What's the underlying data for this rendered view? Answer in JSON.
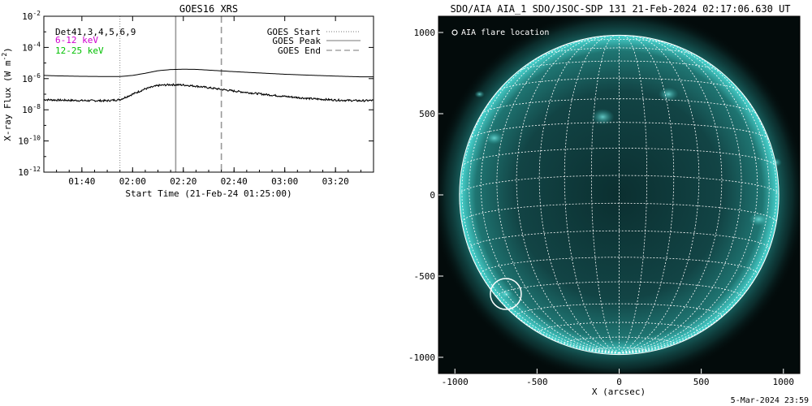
{
  "chart_data": [
    {
      "type": "line",
      "title": "GOES16 XRS",
      "xlabel": "Start Time (21-Feb-24 01:25:00)",
      "ylabel": "X-ray Flux (W m",
      "ylabel_sup": "-2",
      "ylabel_close": ")",
      "y_scale": "log",
      "ylim": [
        1e-12,
        0.01
      ],
      "y_ticks": [
        {
          "base": "10",
          "exp": "-12",
          "value": 1e-12
        },
        {
          "base": "10",
          "exp": "-10",
          "value": 1e-10
        },
        {
          "base": "10",
          "exp": "-8",
          "value": 1e-08
        },
        {
          "base": "10",
          "exp": "-6",
          "value": 1e-06
        },
        {
          "base": "10",
          "exp": "-4",
          "value": 0.0001
        },
        {
          "base": "10",
          "exp": "-2",
          "value": 0.01
        }
      ],
      "xlim": [
        "01:25",
        "03:35"
      ],
      "x_ticks": [
        {
          "label": "01:40",
          "value": "01:40"
        },
        {
          "label": "02:00",
          "value": "02:00"
        },
        {
          "label": "02:20",
          "value": "02:20"
        },
        {
          "label": "02:40",
          "value": "02:40"
        },
        {
          "label": "03:00",
          "value": "03:00"
        },
        {
          "label": "03:20",
          "value": "03:20"
        }
      ],
      "legend_left": [
        {
          "text": "Det41,3,4,5,6,9",
          "color": "#000000"
        },
        {
          "text": "6-12 keV",
          "color": "#d000d0"
        },
        {
          "text": "12-25 keV",
          "color": "#00c000"
        }
      ],
      "legend_right": [
        {
          "text": "GOES Start",
          "style": "dotted"
        },
        {
          "text": "GOES Peak",
          "style": "solid"
        },
        {
          "text": "GOES End",
          "style": "dashed"
        }
      ],
      "markers": {
        "start": "01:55",
        "peak": "02:17",
        "end": "02:35"
      },
      "series": [
        {
          "channel": "long",
          "color": "#000000",
          "x": [
            "01:25",
            "01:30",
            "01:40",
            "01:50",
            "01:55",
            "02:00",
            "02:05",
            "02:10",
            "02:15",
            "02:20",
            "02:25",
            "02:30",
            "02:40",
            "02:50",
            "03:00",
            "03:10",
            "03:20",
            "03:30",
            "03:35"
          ],
          "y": [
            1.6e-06,
            1.5e-06,
            1.4e-06,
            1.35e-06,
            1.35e-06,
            1.6e-06,
            2.2e-06,
            3.2e-06,
            3.8e-06,
            4e-06,
            3.9e-06,
            3.5e-06,
            2.8e-06,
            2.3e-06,
            1.9e-06,
            1.65e-06,
            1.45e-06,
            1.3e-06,
            1.3e-06
          ]
        },
        {
          "channel": "short",
          "color": "#000000",
          "x": [
            "01:25",
            "01:30",
            "01:40",
            "01:50",
            "01:55",
            "02:00",
            "02:05",
            "02:10",
            "02:15",
            "02:20",
            "02:25",
            "02:30",
            "02:40",
            "02:50",
            "03:00",
            "03:10",
            "03:20",
            "03:30",
            "03:35"
          ],
          "y": [
            4.5e-08,
            4.2e-08,
            3.9e-08,
            3.8e-08,
            4.5e-08,
            1e-07,
            2.2e-07,
            3.6e-07,
            4.1e-07,
            3.9e-07,
            3.3e-07,
            2.6e-07,
            1.6e-07,
            1.05e-07,
            7.2e-08,
            5.2e-08,
            4.2e-08,
            3.8e-08,
            4e-08
          ]
        }
      ]
    },
    {
      "type": "scatter",
      "title": "SDO/AIA AIA_1 SDO/JSOC-SDP 131 21-Feb-2024 02:17:06.630 UT",
      "xlabel": "X (arcsec)",
      "ylabel": "",
      "xlim": [
        -1100,
        1100
      ],
      "ylim": [
        -1100,
        1100
      ],
      "x_ticks": [
        {
          "label": "-1000",
          "value": -1000
        },
        {
          "label": "-500",
          "value": -500
        },
        {
          "label": "0",
          "value": 0
        },
        {
          "label": "500",
          "value": 500
        },
        {
          "label": "1000",
          "value": 1000
        }
      ],
      "y_ticks": [
        {
          "label": "-1000",
          "value": -1000
        },
        {
          "label": "-500",
          "value": -500
        },
        {
          "label": "0",
          "value": 0
        },
        {
          "label": "500",
          "value": 500
        },
        {
          "label": "1000",
          "value": 1000
        }
      ],
      "solar_radius_arcsec": 972,
      "legend": "AIA flare location",
      "flare_location": {
        "x": -690,
        "y": -610
      },
      "grid": "heliographic 10 deg",
      "colors": {
        "disk": "#0e3a3a",
        "limb": "#3fd4d0",
        "grid": "#ffffff"
      }
    }
  ],
  "footer": {
    "timestamp": "5-Mar-2024 23:59"
  }
}
